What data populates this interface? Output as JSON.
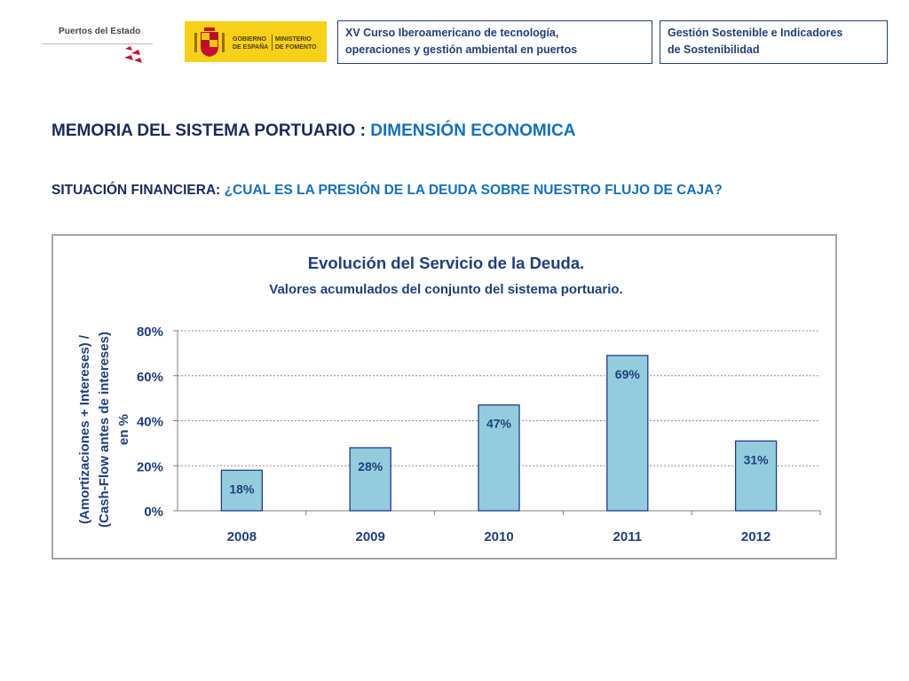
{
  "header": {
    "org_logo": {
      "name": "Puertos del Estado"
    },
    "gov_logo": {
      "line1": "GOBIERNO",
      "line2": "DE ESPAÑA",
      "line3": "MINISTERIO",
      "line4": "DE FOMENTO"
    },
    "course_box": {
      "line1": "XV Curso Iberoamericano de tecnología,",
      "line2": "operaciones y gestión ambiental en puertos"
    },
    "topic_box": {
      "line1": "Gestión Sostenible e Indicadores",
      "line2": "de Sostenibilidad"
    }
  },
  "slide": {
    "title_main": "MEMORIA DEL SISTEMA PORTUARIO : ",
    "title_accent": "DIMENSIÓN ECONOMICA",
    "subtitle_main": "SITUACIÓN FINANCIERA: ",
    "subtitle_accent": "¿CUAL ES LA PRESIÓN DE LA DEUDA SOBRE NUESTRO FLUJO DE CAJA?"
  },
  "colors": {
    "navy": "#1f3f7a",
    "accent_blue": "#1570b8",
    "bar_fill": "#93cddd",
    "bar_border": "#1f3b8c",
    "gov_yellow": "#f7d117",
    "pde_red": "#c8102e"
  },
  "icons": {
    "org_mark": "puertos-del-estado-mark",
    "gov_shield": "coat-of-arms-of-spain"
  },
  "chart_data": {
    "type": "bar",
    "title": "Evolución del Servicio de la Deuda.",
    "subtitle": "Valores acumulados del conjunto del sistema portuario.",
    "ylabel_lines": [
      "(Amortizaciones + Intereses) /",
      "(Cash-Flow antes de intereses)",
      "en %"
    ],
    "xlabel": "",
    "categories": [
      "2008",
      "2009",
      "2010",
      "2011",
      "2012"
    ],
    "values": [
      18,
      28,
      47,
      69,
      31
    ],
    "data_labels": [
      "18%",
      "28%",
      "47%",
      "69%",
      "31%"
    ],
    "ylim": [
      0,
      80
    ],
    "yticks": [
      0,
      20,
      40,
      60,
      80
    ],
    "ytick_labels": [
      "0%",
      "20%",
      "40%",
      "60%",
      "80%"
    ],
    "grid": true,
    "legend": "none"
  }
}
